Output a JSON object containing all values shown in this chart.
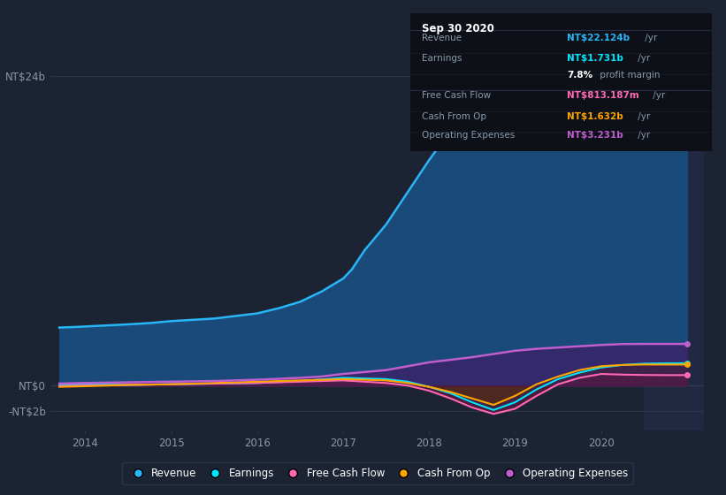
{
  "background_color": "#1c2333",
  "plot_bg_color": "#1c2333",
  "grid_color": "#2d3a52",
  "yticks_labels": [
    "NT$24b",
    "NT$0",
    "-NT$2b"
  ],
  "ytick_positions": [
    24,
    0,
    -2
  ],
  "ylim": [
    -3.5,
    28
  ],
  "xlim": [
    2013.6,
    2021.2
  ],
  "xticks": [
    2014,
    2015,
    2016,
    2017,
    2018,
    2019,
    2020
  ],
  "tooltip": {
    "date": "Sep 30 2020",
    "rows": [
      {
        "label": "Revenue",
        "value": "NT$22.124b",
        "unit": " /yr",
        "value_color": "#29b6f6",
        "sep_above": true
      },
      {
        "label": "Earnings",
        "value": "NT$1.731b",
        "unit": " /yr",
        "value_color": "#00e5ff",
        "sep_above": false
      },
      {
        "label": "",
        "value": "7.8%",
        "unit": " profit margin",
        "value_color": "#ffffff",
        "sep_above": false
      },
      {
        "label": "Free Cash Flow",
        "value": "NT$813.187m",
        "unit": " /yr",
        "value_color": "#ff69b4",
        "sep_above": true
      },
      {
        "label": "Cash From Op",
        "value": "NT$1.632b",
        "unit": " /yr",
        "value_color": "#ffa500",
        "sep_above": false
      },
      {
        "label": "Operating Expenses",
        "value": "NT$3.231b",
        "unit": " /yr",
        "value_color": "#bf5fcf",
        "sep_above": false
      }
    ]
  },
  "series": {
    "revenue": {
      "color": "#29b6f6",
      "fill_color": "#1a4a7a",
      "label": "Revenue",
      "x": [
        2013.7,
        2013.9,
        2014.2,
        2014.5,
        2014.75,
        2015.0,
        2015.25,
        2015.5,
        2015.75,
        2016.0,
        2016.25,
        2016.5,
        2016.75,
        2017.0,
        2017.1,
        2017.25,
        2017.5,
        2017.75,
        2018.0,
        2018.25,
        2018.5,
        2018.75,
        2019.0,
        2019.25,
        2019.5,
        2019.75,
        2020.0,
        2020.25,
        2020.5,
        2020.75,
        2021.0
      ],
      "y": [
        4.5,
        4.55,
        4.65,
        4.75,
        4.85,
        5.0,
        5.1,
        5.2,
        5.4,
        5.6,
        6.0,
        6.5,
        7.3,
        8.3,
        9.0,
        10.5,
        12.5,
        15.0,
        17.5,
        19.8,
        21.5,
        22.8,
        23.5,
        23.7,
        23.5,
        23.0,
        22.5,
        22.0,
        21.5,
        21.8,
        22.1
      ]
    },
    "earnings": {
      "color": "#00e5ff",
      "fill_color": "#004455",
      "label": "Earnings",
      "x": [
        2013.7,
        2014.0,
        2014.5,
        2015.0,
        2015.5,
        2016.0,
        2016.5,
        2017.0,
        2017.5,
        2017.75,
        2018.0,
        2018.25,
        2018.5,
        2018.75,
        2019.0,
        2019.25,
        2019.5,
        2019.75,
        2020.0,
        2020.25,
        2020.5,
        2020.75,
        2021.0
      ],
      "y": [
        0.05,
        0.1,
        0.05,
        0.1,
        0.15,
        0.2,
        0.35,
        0.6,
        0.5,
        0.3,
        -0.1,
        -0.6,
        -1.3,
        -1.9,
        -1.3,
        -0.3,
        0.5,
        1.0,
        1.4,
        1.6,
        1.7,
        1.73,
        1.73
      ]
    },
    "free_cash_flow": {
      "color": "#ff69b4",
      "fill_color": "#7a1040",
      "label": "Free Cash Flow",
      "x": [
        2013.7,
        2014.0,
        2014.5,
        2015.0,
        2015.5,
        2016.0,
        2016.5,
        2017.0,
        2017.5,
        2017.75,
        2018.0,
        2018.25,
        2018.5,
        2018.75,
        2019.0,
        2019.25,
        2019.5,
        2019.75,
        2020.0,
        2020.25,
        2020.5,
        2020.75,
        2021.0
      ],
      "y": [
        -0.05,
        0.0,
        0.05,
        0.1,
        0.15,
        0.2,
        0.3,
        0.4,
        0.2,
        0.0,
        -0.4,
        -1.0,
        -1.7,
        -2.2,
        -1.8,
        -0.8,
        0.1,
        0.6,
        0.9,
        0.85,
        0.82,
        0.81,
        0.81
      ]
    },
    "cash_from_op": {
      "color": "#ffa500",
      "fill_color": "#5a3000",
      "label": "Cash From Op",
      "x": [
        2013.7,
        2014.0,
        2014.5,
        2015.0,
        2015.5,
        2016.0,
        2016.5,
        2017.0,
        2017.5,
        2017.75,
        2018.0,
        2018.25,
        2018.5,
        2018.75,
        2019.0,
        2019.25,
        2019.5,
        2019.75,
        2020.0,
        2020.25,
        2020.5,
        2020.75,
        2021.0
      ],
      "y": [
        -0.1,
        -0.05,
        0.05,
        0.1,
        0.2,
        0.3,
        0.4,
        0.5,
        0.4,
        0.2,
        -0.1,
        -0.5,
        -1.0,
        -1.5,
        -0.8,
        0.1,
        0.7,
        1.2,
        1.5,
        1.6,
        1.63,
        1.63,
        1.63
      ]
    },
    "operating_expenses": {
      "color": "#bf5fcf",
      "fill_color": "#4a1060",
      "label": "Operating Expenses",
      "x": [
        2013.7,
        2014.0,
        2014.5,
        2015.0,
        2015.5,
        2016.0,
        2016.5,
        2016.75,
        2017.0,
        2017.5,
        2018.0,
        2018.5,
        2019.0,
        2019.25,
        2019.5,
        2019.75,
        2020.0,
        2020.25,
        2020.5,
        2020.75,
        2021.0
      ],
      "y": [
        0.15,
        0.2,
        0.25,
        0.3,
        0.35,
        0.45,
        0.6,
        0.7,
        0.9,
        1.2,
        1.8,
        2.2,
        2.7,
        2.85,
        2.95,
        3.05,
        3.15,
        3.22,
        3.23,
        3.23,
        3.23
      ]
    }
  },
  "legend": [
    {
      "label": "Revenue",
      "color": "#29b6f6"
    },
    {
      "label": "Earnings",
      "color": "#00e5ff"
    },
    {
      "label": "Free Cash Flow",
      "color": "#ff69b4"
    },
    {
      "label": "Cash From Op",
      "color": "#ffa500"
    },
    {
      "label": "Operating Expenses",
      "color": "#bf5fcf"
    }
  ]
}
